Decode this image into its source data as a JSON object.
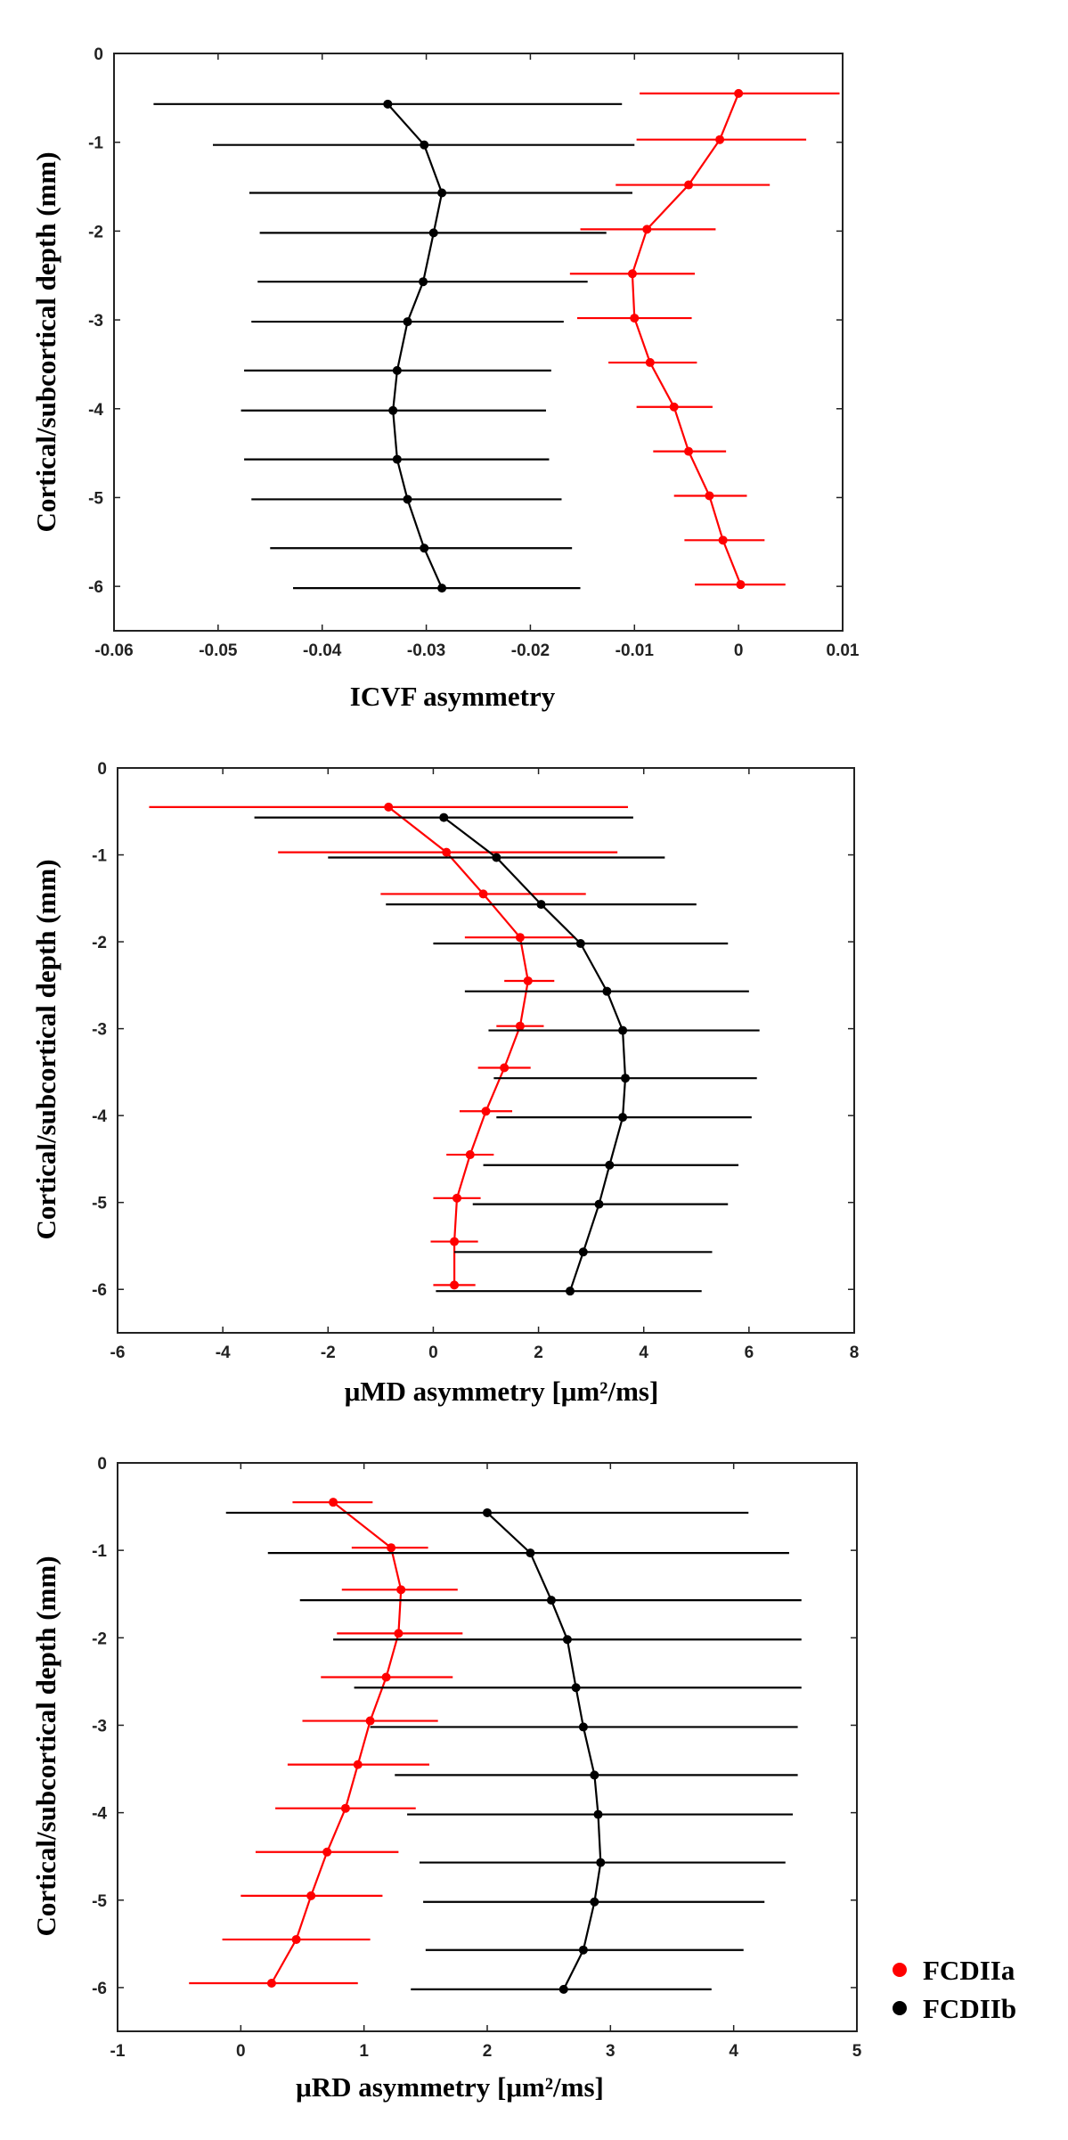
{
  "colors": {
    "FCDIIa": "#ff0000",
    "FCDIIb": "#000000",
    "axis": "#222222"
  },
  "legend": [
    {
      "label": "FCDIIa",
      "color": "#ff0000"
    },
    {
      "label": "FCDIIb",
      "color": "#000000"
    }
  ],
  "chart_data": [
    {
      "type": "scatter",
      "id": "icvf",
      "xlabel": "ICVF asymmetry",
      "ylabel": "Cortical/subcortical depth (mm)",
      "xlim": [
        -0.06,
        0.01
      ],
      "ylim": [
        -6.5,
        0
      ],
      "xticks": [
        -0.06,
        -0.05,
        -0.04,
        -0.03,
        -0.02,
        -0.01,
        0,
        0.01
      ],
      "xtick_labels": [
        "-0.06",
        "-0.05",
        "-0.04",
        "-0.03",
        "-0.02",
        "-0.01",
        "0",
        "0.01"
      ],
      "yticks": [
        0,
        -1,
        -2,
        -3,
        -4,
        -5,
        -6
      ],
      "ytick_labels": [
        "0",
        "-1",
        "-2",
        "-3",
        "-4",
        "-5",
        "-6"
      ],
      "series": [
        {
          "name": "FCDIIa",
          "points": [
            {
              "y": -0.45,
              "x": 0.0,
              "lo": -0.0095,
              "hi": 0.0097
            },
            {
              "y": -0.97,
              "x": -0.0018,
              "lo": -0.0098,
              "hi": 0.0065
            },
            {
              "y": -1.48,
              "x": -0.0048,
              "lo": -0.0118,
              "hi": 0.003
            },
            {
              "y": -1.98,
              "x": -0.0088,
              "lo": -0.0152,
              "hi": -0.0022
            },
            {
              "y": -2.48,
              "x": -0.0102,
              "lo": -0.0162,
              "hi": -0.0042
            },
            {
              "y": -2.98,
              "x": -0.01,
              "lo": -0.0155,
              "hi": -0.0045
            },
            {
              "y": -3.48,
              "x": -0.0085,
              "lo": -0.0125,
              "hi": -0.004
            },
            {
              "y": -3.98,
              "x": -0.0062,
              "lo": -0.0098,
              "hi": -0.0025
            },
            {
              "y": -4.48,
              "x": -0.0048,
              "lo": -0.0082,
              "hi": -0.0012
            },
            {
              "y": -4.98,
              "x": -0.0028,
              "lo": -0.0062,
              "hi": 0.0008
            },
            {
              "y": -5.48,
              "x": -0.0015,
              "lo": -0.0052,
              "hi": 0.0025
            },
            {
              "y": -5.98,
              "x": 0.0002,
              "lo": -0.0042,
              "hi": 0.0045
            }
          ]
        },
        {
          "name": "FCDIIb",
          "points": [
            {
              "y": -0.57,
              "x": -0.0337,
              "lo": -0.0562,
              "hi": -0.0112
            },
            {
              "y": -1.03,
              "x": -0.0302,
              "lo": -0.0505,
              "hi": -0.01
            },
            {
              "y": -1.57,
              "x": -0.0285,
              "lo": -0.047,
              "hi": -0.0102
            },
            {
              "y": -2.02,
              "x": -0.0293,
              "lo": -0.046,
              "hi": -0.0127
            },
            {
              "y": -2.57,
              "x": -0.0303,
              "lo": -0.0462,
              "hi": -0.0145
            },
            {
              "y": -3.02,
              "x": -0.0318,
              "lo": -0.0468,
              "hi": -0.0168
            },
            {
              "y": -3.57,
              "x": -0.0328,
              "lo": -0.0475,
              "hi": -0.018
            },
            {
              "y": -4.02,
              "x": -0.0332,
              "lo": -0.0478,
              "hi": -0.0185
            },
            {
              "y": -4.57,
              "x": -0.0328,
              "lo": -0.0475,
              "hi": -0.0182
            },
            {
              "y": -5.02,
              "x": -0.0318,
              "lo": -0.0468,
              "hi": -0.017
            },
            {
              "y": -5.57,
              "x": -0.0302,
              "lo": -0.045,
              "hi": -0.016
            },
            {
              "y": -6.02,
              "x": -0.0285,
              "lo": -0.0428,
              "hi": -0.0152
            }
          ]
        }
      ]
    },
    {
      "type": "scatter",
      "id": "umd",
      "xlabel": "μMD asymmetry  [μm²/ms]",
      "ylabel": "Cortical/subcortical depth (mm)",
      "xlim": [
        -6,
        8
      ],
      "ylim": [
        -6.5,
        0
      ],
      "xticks": [
        -6,
        -4,
        -2,
        0,
        2,
        4,
        6,
        8
      ],
      "xtick_labels": [
        "-6",
        "-4",
        "-2",
        "0",
        "2",
        "4",
        "6",
        "8"
      ],
      "yticks": [
        0,
        -1,
        -2,
        -3,
        -4,
        -5,
        -6
      ],
      "ytick_labels": [
        "0",
        "-1",
        "-2",
        "-3",
        "-4",
        "-5",
        "-6"
      ],
      "series": [
        {
          "name": "FCDIIa",
          "points": [
            {
              "y": -0.45,
              "x": -0.85,
              "lo": -5.4,
              "hi": 3.7
            },
            {
              "y": -0.97,
              "x": 0.25,
              "lo": -2.95,
              "hi": 3.5
            },
            {
              "y": -1.45,
              "x": 0.95,
              "lo": -1.0,
              "hi": 2.9
            },
            {
              "y": -1.95,
              "x": 1.65,
              "lo": 0.6,
              "hi": 2.7
            },
            {
              "y": -2.45,
              "x": 1.8,
              "lo": 1.35,
              "hi": 2.3
            },
            {
              "y": -2.97,
              "x": 1.65,
              "lo": 1.2,
              "hi": 2.1
            },
            {
              "y": -3.45,
              "x": 1.35,
              "lo": 0.85,
              "hi": 1.85
            },
            {
              "y": -3.95,
              "x": 1.0,
              "lo": 0.5,
              "hi": 1.5
            },
            {
              "y": -4.45,
              "x": 0.7,
              "lo": 0.25,
              "hi": 1.15
            },
            {
              "y": -4.95,
              "x": 0.45,
              "lo": 0.0,
              "hi": 0.9
            },
            {
              "y": -5.45,
              "x": 0.4,
              "lo": -0.05,
              "hi": 0.85
            },
            {
              "y": -5.95,
              "x": 0.4,
              "lo": 0.0,
              "hi": 0.8
            }
          ]
        },
        {
          "name": "FCDIIb",
          "points": [
            {
              "y": -0.57,
              "x": 0.2,
              "lo": -3.4,
              "hi": 3.8
            },
            {
              "y": -1.03,
              "x": 1.2,
              "lo": -2.0,
              "hi": 4.4
            },
            {
              "y": -1.57,
              "x": 2.05,
              "lo": -0.9,
              "hi": 5.0
            },
            {
              "y": -2.02,
              "x": 2.8,
              "lo": 0.0,
              "hi": 5.6
            },
            {
              "y": -2.57,
              "x": 3.3,
              "lo": 0.6,
              "hi": 6.0
            },
            {
              "y": -3.02,
              "x": 3.6,
              "lo": 1.05,
              "hi": 6.2
            },
            {
              "y": -3.57,
              "x": 3.65,
              "lo": 1.15,
              "hi": 6.15
            },
            {
              "y": -4.02,
              "x": 3.6,
              "lo": 1.2,
              "hi": 6.05
            },
            {
              "y": -4.57,
              "x": 3.35,
              "lo": 0.95,
              "hi": 5.8
            },
            {
              "y": -5.02,
              "x": 3.15,
              "lo": 0.75,
              "hi": 5.6
            },
            {
              "y": -5.57,
              "x": 2.85,
              "lo": 0.4,
              "hi": 5.3
            },
            {
              "y": -6.02,
              "x": 2.6,
              "lo": 0.05,
              "hi": 5.1
            }
          ]
        }
      ]
    },
    {
      "type": "scatter",
      "id": "urd",
      "xlabel": "μRD asymmetry  [μm²/ms]",
      "ylabel": "Cortical/subcortical depth (mm)",
      "xlim": [
        -1,
        5
      ],
      "ylim": [
        -6.5,
        0
      ],
      "xticks": [
        -1,
        0,
        1,
        2,
        3,
        4,
        5
      ],
      "xtick_labels": [
        "-1",
        "0",
        "1",
        "2",
        "3",
        "4",
        "5"
      ],
      "yticks": [
        0,
        -1,
        -2,
        -3,
        -4,
        -5,
        -6
      ],
      "ytick_labels": [
        "0",
        "-1",
        "-2",
        "-3",
        "-4",
        "-5",
        "-6"
      ],
      "series": [
        {
          "name": "FCDIIa",
          "points": [
            {
              "y": -0.45,
              "x": 0.75,
              "lo": 0.42,
              "hi": 1.07
            },
            {
              "y": -0.97,
              "x": 1.22,
              "lo": 0.9,
              "hi": 1.52
            },
            {
              "y": -1.45,
              "x": 1.3,
              "lo": 0.82,
              "hi": 1.76
            },
            {
              "y": -1.95,
              "x": 1.28,
              "lo": 0.78,
              "hi": 1.8
            },
            {
              "y": -2.45,
              "x": 1.18,
              "lo": 0.65,
              "hi": 1.72
            },
            {
              "y": -2.95,
              "x": 1.05,
              "lo": 0.5,
              "hi": 1.6
            },
            {
              "y": -3.45,
              "x": 0.95,
              "lo": 0.38,
              "hi": 1.53
            },
            {
              "y": -3.95,
              "x": 0.85,
              "lo": 0.28,
              "hi": 1.42
            },
            {
              "y": -4.45,
              "x": 0.7,
              "lo": 0.12,
              "hi": 1.28
            },
            {
              "y": -4.95,
              "x": 0.57,
              "lo": 0.0,
              "hi": 1.15
            },
            {
              "y": -5.45,
              "x": 0.45,
              "lo": -0.15,
              "hi": 1.05
            },
            {
              "y": -5.95,
              "x": 0.25,
              "lo": -0.42,
              "hi": 0.95
            }
          ]
        },
        {
          "name": "FCDIIb",
          "points": [
            {
              "y": -0.57,
              "x": 2.0,
              "lo": -0.12,
              "hi": 4.12
            },
            {
              "y": -1.03,
              "x": 2.35,
              "lo": 0.22,
              "hi": 4.45
            },
            {
              "y": -1.57,
              "x": 2.52,
              "lo": 0.48,
              "hi": 4.55
            },
            {
              "y": -2.02,
              "x": 2.65,
              "lo": 0.75,
              "hi": 4.55
            },
            {
              "y": -2.57,
              "x": 2.72,
              "lo": 0.92,
              "hi": 4.55
            },
            {
              "y": -3.02,
              "x": 2.78,
              "lo": 1.05,
              "hi": 4.52
            },
            {
              "y": -3.57,
              "x": 2.87,
              "lo": 1.25,
              "hi": 4.52
            },
            {
              "y": -4.02,
              "x": 2.9,
              "lo": 1.35,
              "hi": 4.48
            },
            {
              "y": -4.57,
              "x": 2.92,
              "lo": 1.45,
              "hi": 4.42
            },
            {
              "y": -5.02,
              "x": 2.87,
              "lo": 1.48,
              "hi": 4.25
            },
            {
              "y": -5.57,
              "x": 2.78,
              "lo": 1.5,
              "hi": 4.08
            },
            {
              "y": -6.02,
              "x": 2.62,
              "lo": 1.38,
              "hi": 3.82
            }
          ]
        }
      ]
    }
  ]
}
